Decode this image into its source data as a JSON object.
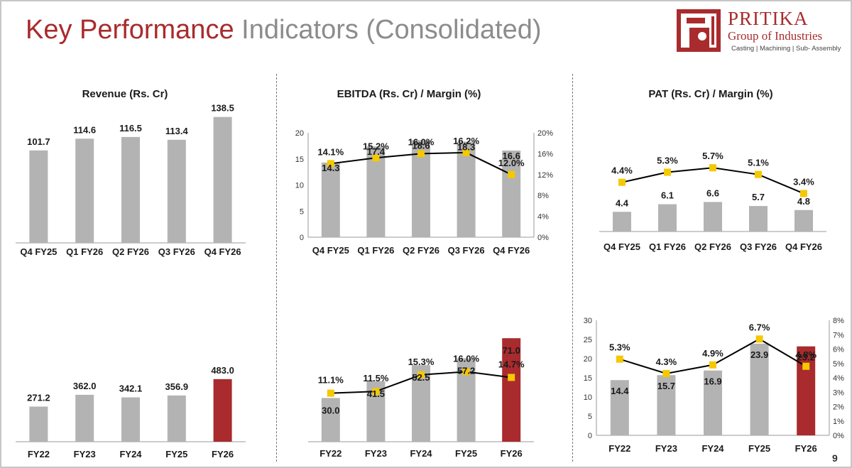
{
  "header": {
    "title_part1": "Key Performance",
    "title_part2": "Indicators (Consolidated)",
    "page_number": "9"
  },
  "logo": {
    "name": "PRITIKA",
    "group": "Group of Industries",
    "tagline": "Casting | Machining | Sub- Assembly"
  },
  "colors": {
    "bar": "#b3b3b3",
    "highlight": "#a92b2d",
    "marker": "#f5c800",
    "line": "#000000"
  },
  "chart_data": [
    {
      "id": "revenue-quarterly",
      "type": "bar",
      "title": "Revenue (Rs. Cr)",
      "categories": [
        "Q4 FY25",
        "Q1 FY26",
        "Q2 FY26",
        "Q3 FY26",
        "Q4 FY26"
      ],
      "values": [
        101.7,
        114.6,
        116.5,
        113.4,
        138.5
      ],
      "value_labels": [
        "101.7",
        "114.6",
        "116.5",
        "113.4",
        "138.5"
      ],
      "highlight": [],
      "ylim": [
        0,
        150
      ]
    },
    {
      "id": "ebitda-quarterly",
      "type": "bar+line",
      "title": "EBITDA (Rs. Cr) / Margin (%)",
      "categories": [
        "Q4 FY25",
        "Q1 FY26",
        "Q2 FY26",
        "Q3 FY26",
        "Q4 FY26"
      ],
      "values": [
        14.3,
        17.4,
        18.6,
        18.3,
        16.6
      ],
      "value_labels": [
        "14.3",
        "17.4",
        "18.6",
        "18.3",
        "16.6"
      ],
      "margins": [
        14.1,
        15.2,
        16.0,
        16.2,
        12.0
      ],
      "margin_labels": [
        "14.1%",
        "15.2%",
        "16.0%",
        "16.2%",
        "12.0%"
      ],
      "highlight": [],
      "ylim": [
        0,
        20
      ],
      "y_ticks": [
        "0",
        "5",
        "10",
        "15",
        "20"
      ],
      "y2lim": [
        0,
        20
      ],
      "y2_ticks": [
        "0%",
        "4%",
        "8%",
        "12%",
        "16%",
        "20%"
      ]
    },
    {
      "id": "pat-quarterly",
      "type": "bar+line",
      "title": "PAT (Rs. Cr) / Margin (%)",
      "categories": [
        "Q4 FY25",
        "Q1 FY26",
        "Q2 FY26",
        "Q3 FY26",
        "Q4 FY26"
      ],
      "values": [
        4.4,
        6.1,
        6.6,
        5.7,
        4.8
      ],
      "value_labels": [
        "4.4",
        "6.1",
        "6.6",
        "5.7",
        "4.8"
      ],
      "margins": [
        4.4,
        5.3,
        5.7,
        5.1,
        3.4
      ],
      "margin_labels": [
        "4.4%",
        "5.3%",
        "5.7%",
        "5.1%",
        "3.4%"
      ],
      "highlight": [],
      "ylim": [
        0,
        20
      ],
      "y2lim": [
        0,
        8
      ]
    },
    {
      "id": "revenue-annual",
      "type": "bar",
      "categories": [
        "FY22",
        "FY23",
        "FY24",
        "FY25",
        "FY26"
      ],
      "values": [
        271.2,
        362.0,
        342.1,
        356.9,
        483.0
      ],
      "value_labels": [
        "271.2",
        "362.0",
        "342.1",
        "356.9",
        "483.0"
      ],
      "highlight": [
        4
      ],
      "ylim": [
        0,
        800
      ]
    },
    {
      "id": "ebitda-annual",
      "type": "bar+line",
      "categories": [
        "FY22",
        "FY23",
        "FY24",
        "FY25",
        "FY26"
      ],
      "values": [
        30.0,
        41.5,
        52.5,
        57.2,
        71.0
      ],
      "value_labels": [
        "30.0",
        "41.5",
        "52.5",
        "57.2",
        "71.0"
      ],
      "margins": [
        11.1,
        11.5,
        15.3,
        16.0,
        14.7
      ],
      "margin_labels": [
        "11.1%",
        "11.5%",
        "15.3%",
        "16.0%",
        "14.7%"
      ],
      "highlight": [
        4
      ],
      "ylim": [
        0,
        75
      ],
      "y2lim": [
        0,
        25
      ]
    },
    {
      "id": "pat-annual",
      "type": "bar+line",
      "categories": [
        "FY22",
        "FY23",
        "FY24",
        "FY25",
        "FY26"
      ],
      "values": [
        14.4,
        15.7,
        16.9,
        23.9,
        23.2
      ],
      "value_labels": [
        "14.4",
        "15.7",
        "16.9",
        "23.9",
        "23.2"
      ],
      "margins": [
        5.3,
        4.3,
        4.9,
        6.7,
        4.8
      ],
      "margin_labels": [
        "5.3%",
        "4.3%",
        "4.9%",
        "6.7%",
        "4.8%"
      ],
      "highlight": [
        4
      ],
      "ylim": [
        0,
        30
      ],
      "y_ticks": [
        "0",
        "5",
        "10",
        "15",
        "20",
        "25",
        "30"
      ],
      "y2lim": [
        0,
        8
      ],
      "y2_ticks": [
        "0%",
        "1%",
        "2%",
        "3%",
        "4%",
        "5%",
        "6%",
        "7%",
        "8%"
      ]
    }
  ]
}
